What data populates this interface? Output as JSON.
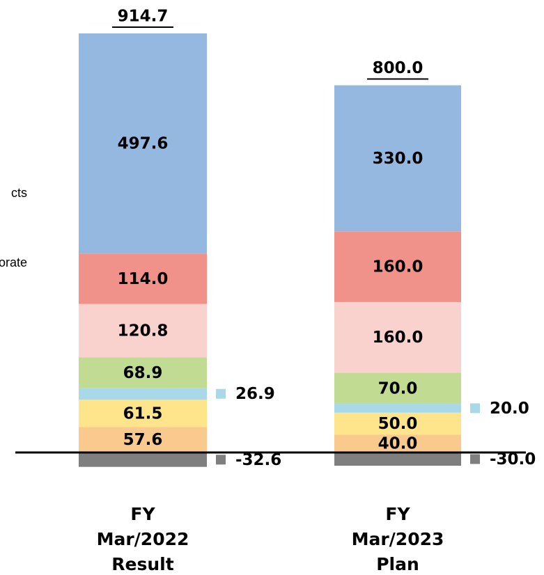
{
  "chart_data": {
    "type": "stacked_bar",
    "categories": [
      "FY Mar/2022 Result",
      "FY Mar/2023 Plan"
    ],
    "ylim": [
      -100,
      1000
    ],
    "totals": [
      914.7,
      800
    ],
    "totals_labels": [
      "914.7",
      "800.0"
    ],
    "series": [
      {
        "name": "cts",
        "color": "#95b8e1",
        "values": [
          497.6,
          330
        ],
        "value_labels": [
          "497.6",
          "330.0"
        ]
      },
      {
        "name": "orate",
        "color": "#f0918a",
        "values": [
          114,
          160
        ],
        "value_labels": [
          "114.0",
          "160.0"
        ]
      },
      {
        "color": "#f9d1cd",
        "values": [
          120.8,
          160
        ],
        "value_labels": [
          "120.8",
          "160.0"
        ]
      },
      {
        "color": "#c1dc92",
        "values": [
          68.9,
          70
        ],
        "value_labels": [
          "68.9",
          "70.0"
        ]
      },
      {
        "color": "#a9d9e8",
        "values": [
          26.9,
          20
        ],
        "value_labels": [
          "26.9",
          "20.0"
        ]
      },
      {
        "color": "#fee58b",
        "values": [
          61.5,
          50
        ],
        "value_labels": [
          "61.5",
          "50.0"
        ]
      },
      {
        "color": "#f9c98d",
        "values": [
          57.6,
          40
        ],
        "value_labels": [
          "57.6",
          "40.0"
        ]
      },
      {
        "color": "#7f7f7f",
        "values": [
          -32.6,
          -30
        ],
        "value_labels": [
          "-32.6",
          "-30.0"
        ]
      }
    ]
  }
}
